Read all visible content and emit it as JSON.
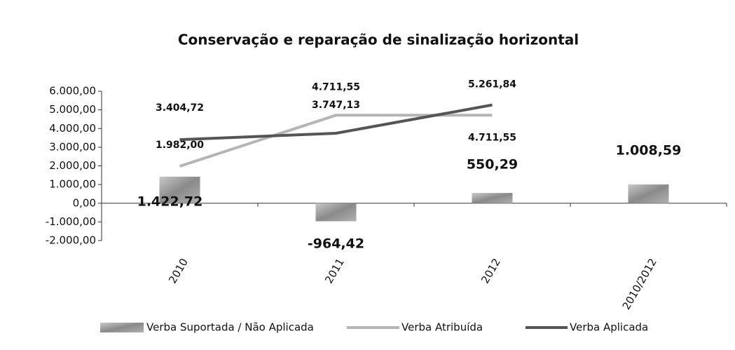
{
  "chart_data": {
    "type": "combo",
    "title": "Conservação e reparação de sinalização horizontal",
    "categories": [
      "2010",
      "2011",
      "2012",
      "2010/2012"
    ],
    "ylim": [
      -2000,
      6000
    ],
    "yticks": [
      {
        "value": -2000,
        "label": "-2.000,00"
      },
      {
        "value": -1000,
        "label": "-1.000,00"
      },
      {
        "value": 0,
        "label": "0,00"
      },
      {
        "value": 1000,
        "label": "1.000,00"
      },
      {
        "value": 2000,
        "label": "2.000,00"
      },
      {
        "value": 3000,
        "label": "3.000,00"
      },
      {
        "value": 4000,
        "label": "4.000,00"
      },
      {
        "value": 5000,
        "label": "5.000,00"
      },
      {
        "value": 6000,
        "label": "6.000,00"
      }
    ],
    "grid": false,
    "series": [
      {
        "name": "Verba Suportada / Não Aplicada",
        "type": "bar",
        "color": "#9a9a9a",
        "values": [
          1422.72,
          -964.42,
          550.29,
          1008.59
        ],
        "value_labels": [
          "1.422,72",
          "-964,42",
          "550,29",
          "1.008,59"
        ]
      },
      {
        "name": "Verba Atribuída",
        "type": "line",
        "color": "#b5b5b5",
        "values": [
          1982.0,
          4711.55,
          4711.55,
          null
        ],
        "value_labels": [
          "1.982,00",
          "4.711,55",
          "4.711,55",
          null
        ]
      },
      {
        "name": "Verba Aplicada",
        "type": "line",
        "color": "#555555",
        "values": [
          3404.72,
          3747.13,
          5261.84,
          null
        ],
        "value_labels": [
          "3.404,72",
          "3.747,13",
          "5.261,84",
          null
        ]
      }
    ]
  }
}
